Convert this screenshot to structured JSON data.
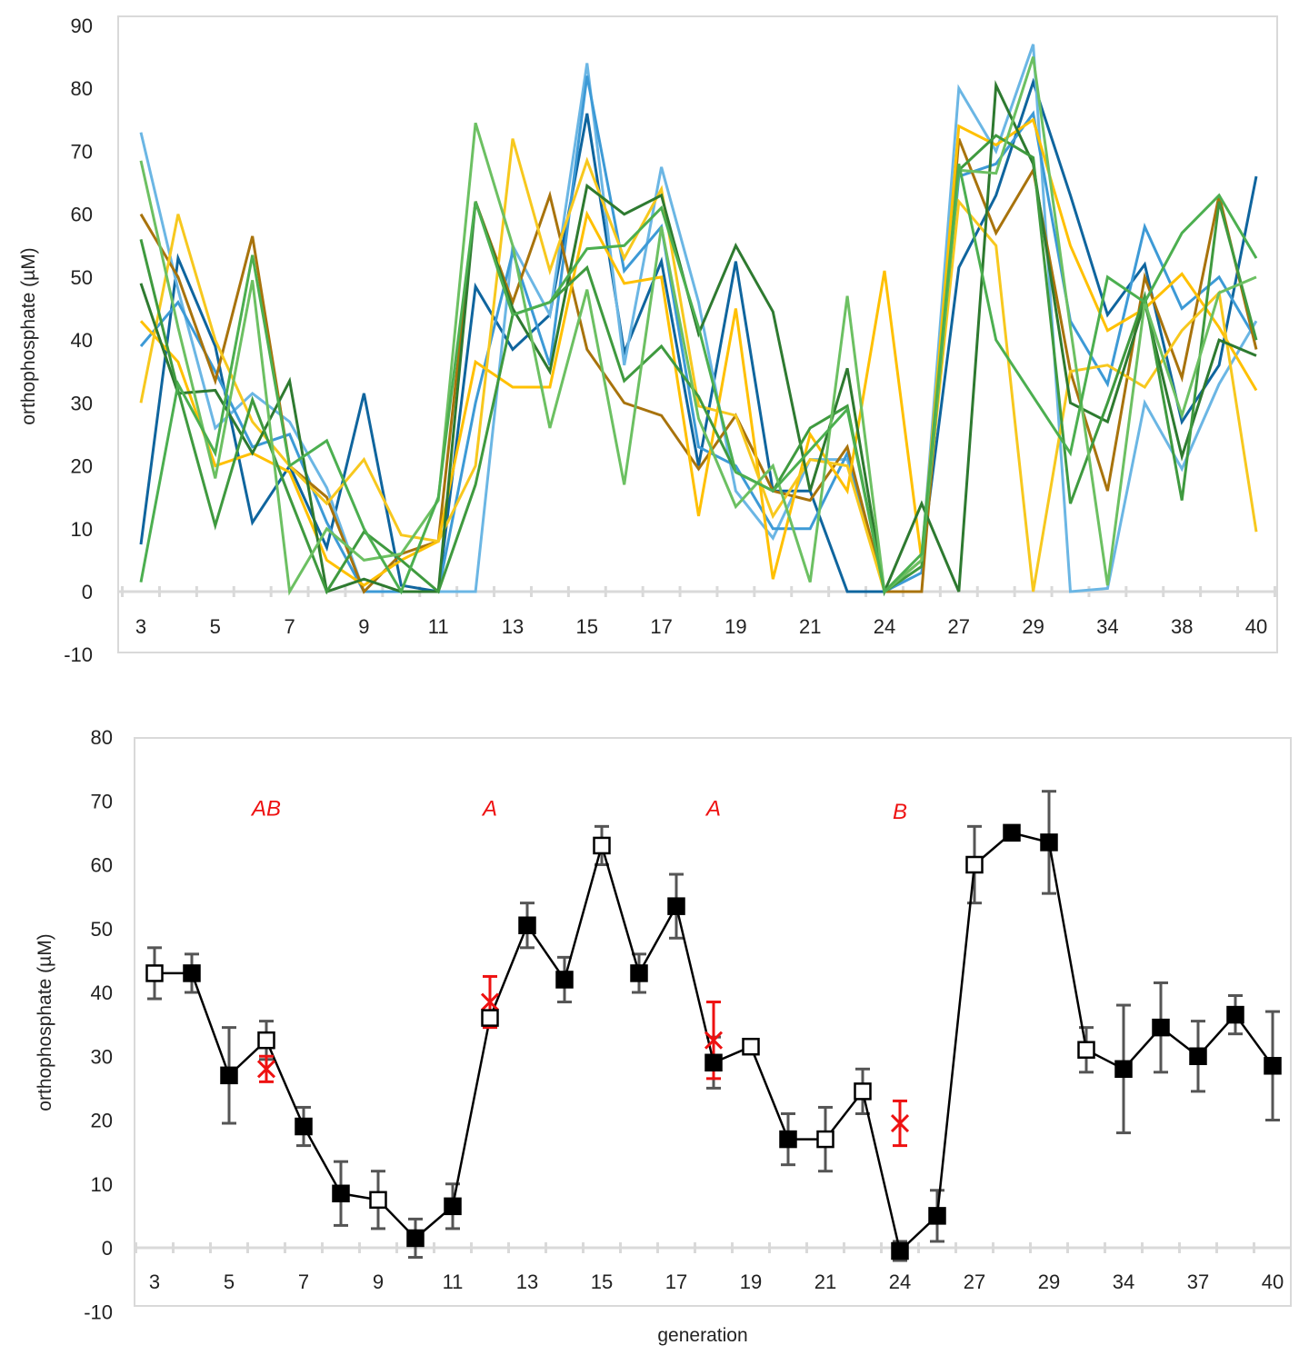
{
  "chart_data": [
    {
      "type": "line",
      "ylabel": "orthophosphate (µM)",
      "xlabel": "",
      "ylim": [
        -10,
        90
      ],
      "yticks": [
        -10,
        0,
        10,
        20,
        30,
        40,
        50,
        60,
        70,
        80,
        90
      ],
      "categories": [
        "3",
        "",
        "5",
        "",
        "7",
        "",
        "9",
        "",
        "11",
        "",
        "13",
        "",
        "15",
        "",
        "17",
        "",
        "19",
        "",
        "21",
        "",
        "24",
        "",
        "27",
        "",
        "29",
        "",
        "34",
        "",
        "38",
        "",
        "40"
      ],
      "grid": false,
      "legend": "none",
      "series": [
        {
          "color": "#0f659e",
          "values": [
            7.5,
            53,
            39,
            11,
            20,
            7,
            31.5,
            1,
            0,
            48.5,
            38.5,
            44,
            76,
            38,
            52.5,
            20,
            52.5,
            16,
            16,
            0,
            0,
            5,
            51.5,
            63,
            81,
            63,
            44,
            52,
            27,
            36,
            66
          ]
        },
        {
          "color": "#6bb6e4",
          "values": [
            73,
            48,
            26,
            31.5,
            27,
            16.5,
            0,
            0,
            0,
            0,
            55,
            44,
            84,
            36,
            67.5,
            46,
            16,
            8.5,
            21,
            21,
            0,
            5,
            80,
            70,
            87,
            0,
            0.5,
            30,
            19.5,
            33,
            43
          ]
        },
        {
          "color": "#3d9ad6",
          "values": [
            39,
            46,
            35,
            23,
            25,
            11,
            0,
            0,
            0,
            30,
            54,
            36,
            82,
            51,
            58,
            23,
            20,
            10,
            10,
            22,
            0,
            3,
            66,
            68,
            76,
            43,
            33,
            58,
            45,
            50,
            40
          ]
        },
        {
          "color": "#a8730c",
          "values": [
            60,
            50,
            33.5,
            56.5,
            20,
            15,
            0,
            6,
            8,
            62,
            46,
            63,
            38.5,
            30,
            28,
            19.5,
            28,
            16,
            14.5,
            23,
            0,
            0,
            72,
            57,
            67,
            35,
            16,
            50,
            34,
            63,
            38.5
          ]
        },
        {
          "color": "#ffc000",
          "values": [
            43,
            36.5,
            20,
            22,
            19,
            5,
            1,
            5,
            8,
            36.5,
            32.5,
            32.5,
            60,
            49,
            50,
            12,
            45,
            2,
            25,
            16,
            51,
            5,
            74,
            71,
            75,
            55,
            41.5,
            45,
            50.5,
            42,
            32
          ]
        },
        {
          "color": "#f7c81e",
          "values": [
            30,
            60,
            40,
            27,
            20,
            14,
            21,
            9,
            8,
            20,
            72,
            51,
            68.5,
            53,
            64,
            29.5,
            28,
            12,
            21,
            20,
            0,
            5,
            62,
            55,
            0,
            35,
            36,
            32.5,
            41.5,
            47.5,
            9.5
          ]
        },
        {
          "color": "#2e7a30",
          "values": [
            49,
            31.5,
            32,
            22,
            33.5,
            0,
            2,
            0,
            0,
            62,
            45,
            35,
            64.5,
            60,
            63,
            41,
            55,
            44.5,
            16,
            35.5,
            0,
            14,
            0,
            80.5,
            68,
            30,
            27,
            46,
            21.5,
            40,
            37.5
          ]
        },
        {
          "color": "#3f9a3f",
          "values": [
            56,
            32,
            10.5,
            30.5,
            15,
            0,
            9.5,
            5,
            0,
            17,
            44,
            46,
            51.5,
            33.5,
            39,
            31,
            19,
            16,
            26,
            29.5,
            0,
            4,
            67,
            72.5,
            69,
            14,
            30,
            47,
            14.5,
            62,
            40
          ]
        },
        {
          "color": "#6cc062",
          "values": [
            68.5,
            42,
            18,
            49.5,
            0,
            10,
            5,
            6,
            14.5,
            74.5,
            55,
            26,
            48,
            17,
            58,
            27.5,
            13.5,
            20,
            1.5,
            47,
            0,
            5,
            67,
            66.5,
            85,
            42,
            1,
            46,
            28,
            47.5,
            50
          ]
        },
        {
          "color": "#4caf50",
          "values": [
            1.5,
            33,
            22,
            53.5,
            20,
            24,
            10,
            0,
            15,
            62,
            44,
            46,
            54.5,
            55,
            61,
            42,
            19,
            16,
            22.5,
            29,
            0,
            6,
            68,
            40,
            31,
            22,
            50,
            46,
            57,
            63,
            53
          ]
        }
      ]
    },
    {
      "type": "line",
      "ylabel": "orthophosphate (µM)",
      "xlabel": "generation",
      "ylim": [
        -10,
        80
      ],
      "yticks": [
        -10,
        0,
        10,
        20,
        30,
        40,
        50,
        60,
        70,
        80
      ],
      "categories": [
        "3",
        "",
        "5",
        "",
        "7",
        "",
        "9",
        "",
        "11",
        "",
        "13",
        "",
        "15",
        "",
        "17",
        "",
        "19",
        "",
        "21",
        "",
        "24",
        "",
        "27",
        "",
        "29",
        "",
        "34",
        "",
        "37",
        "",
        "40"
      ],
      "grid": false,
      "legend": "none",
      "series": [
        {
          "color": "#000000",
          "values": [
            43,
            43,
            27,
            32.5,
            19,
            8.5,
            7.5,
            1.5,
            6.5,
            36,
            50.5,
            42,
            63,
            43,
            53.5,
            29,
            31.5,
            17,
            17,
            24.5,
            -0.5,
            5,
            60,
            65,
            63.5,
            31,
            28,
            34.5,
            30,
            36.5,
            28.5
          ],
          "errors": [
            4,
            3,
            7.5,
            3,
            3,
            5,
            4.5,
            3,
            3.5,
            0,
            3.5,
            3.5,
            3,
            3,
            5,
            4,
            0,
            4,
            5,
            3.5,
            1.5,
            4,
            6,
            0,
            8,
            3.5,
            10,
            7,
            5.5,
            3,
            8.5
          ],
          "filled": [
            false,
            true,
            true,
            false,
            true,
            true,
            false,
            true,
            true,
            false,
            true,
            true,
            false,
            true,
            true,
            true,
            false,
            true,
            false,
            false,
            true,
            true,
            false,
            true,
            true,
            false,
            true,
            true,
            true,
            true,
            true
          ]
        }
      ],
      "red_markers": [
        {
          "category_index": 3,
          "value": 28,
          "error": 2
        },
        {
          "category_index": 9,
          "value": 38.5,
          "error": 4
        },
        {
          "category_index": 15,
          "value": 32.5,
          "error": 6
        },
        {
          "category_index": 20,
          "value": 19.5,
          "error": 3.5
        }
      ],
      "annotations": [
        {
          "text": "AB",
          "category_index": 3,
          "value": 69
        },
        {
          "text": "A",
          "category_index": 9,
          "value": 69
        },
        {
          "text": "A",
          "category_index": 15,
          "value": 69
        },
        {
          "text": "B",
          "category_index": 20,
          "value": 68.5
        }
      ],
      "colors": {
        "marker": "#000000",
        "error_bar": "#555555",
        "red": "#ee1111"
      }
    }
  ]
}
